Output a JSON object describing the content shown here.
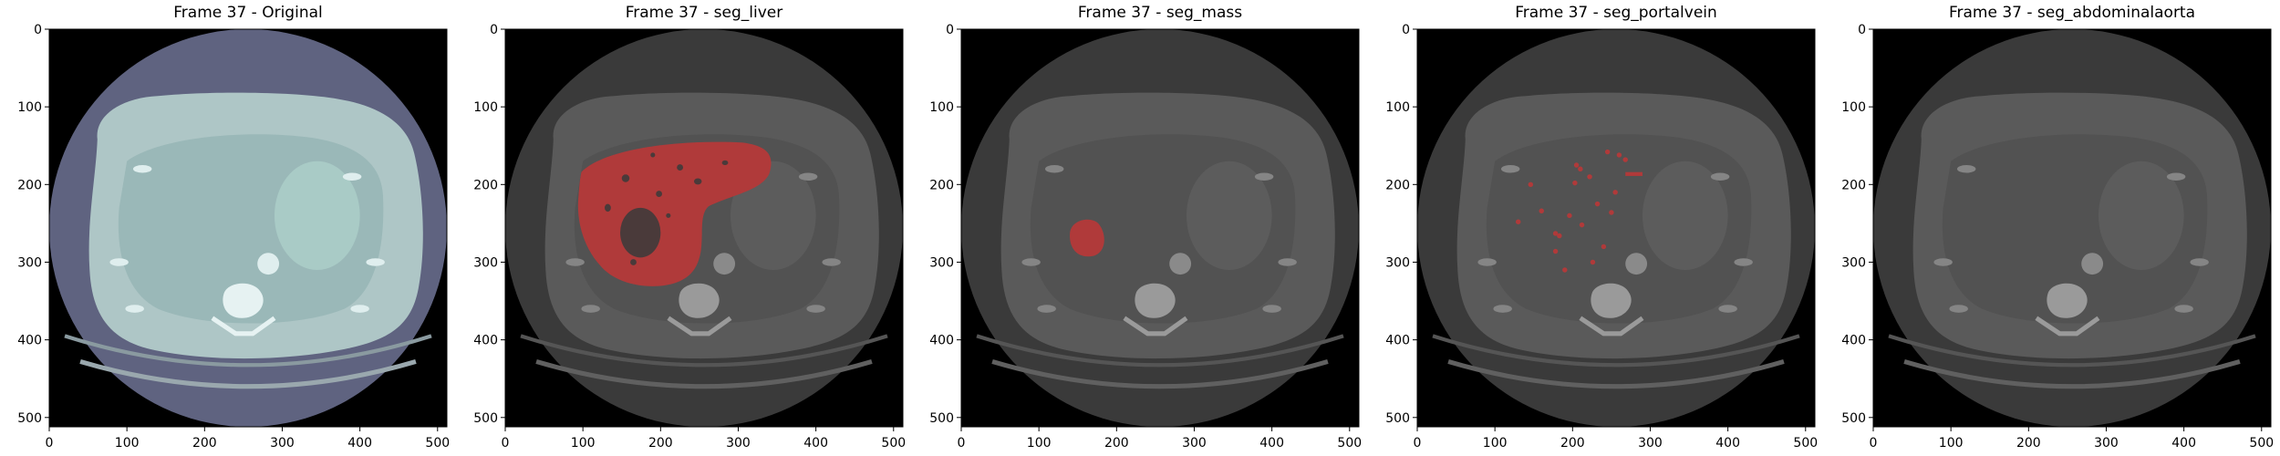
{
  "figure": {
    "panels": [
      {
        "title": "Frame 37 - Original",
        "mode": "original",
        "overlay": "none"
      },
      {
        "title": "Frame 37 - seg_liver",
        "mode": "gray",
        "overlay": "liver"
      },
      {
        "title": "Frame 37 - seg_mass",
        "mode": "gray",
        "overlay": "mass"
      },
      {
        "title": "Frame 37 - seg_portalvein",
        "mode": "gray",
        "overlay": "portalvein"
      },
      {
        "title": "Frame 37 - seg_abdominalaorta",
        "mode": "gray",
        "overlay": "none"
      }
    ],
    "axes": {
      "x_ticks": [
        "0",
        "100",
        "200",
        "300",
        "400",
        "500"
      ],
      "y_ticks": [
        "0",
        "100",
        "200",
        "300",
        "400",
        "500"
      ],
      "x_range": [
        0,
        512
      ],
      "y_range": [
        0,
        512
      ]
    },
    "colors": {
      "overlay": "#b03a3a",
      "original_tint": "#5f6380",
      "gray_disc": "#3a3a3a"
    }
  }
}
